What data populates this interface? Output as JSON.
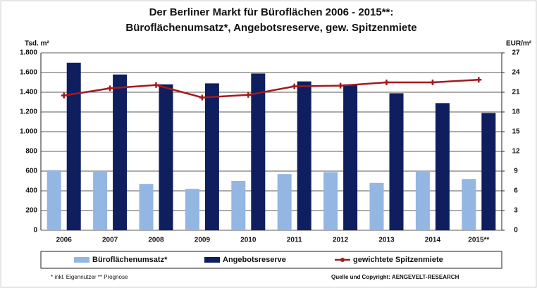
{
  "chart_data": {
    "type": "bar_line",
    "title": "Der Berliner Markt für Büroflächen 2006 - 2015**:",
    "subtitle": "Büroflächenumsatz*, Angebotsreserve, gew. Spitzenmiete",
    "y_label": "Tsd. m²",
    "y2_label": "EUR/m²",
    "categories": [
      "2006",
      "2007",
      "2008",
      "2009",
      "2010",
      "2011",
      "2012",
      "2013",
      "2014",
      "2015**"
    ],
    "series": [
      {
        "name": "Büroflächenumsatz*",
        "type": "bar",
        "color": "#93b6e2",
        "values": [
          610,
          600,
          470,
          420,
          500,
          570,
          590,
          480,
          600,
          520
        ]
      },
      {
        "name": "Angebotsreserve",
        "type": "bar",
        "color": "#0f1e5e",
        "values": [
          1700,
          1580,
          1480,
          1490,
          1590,
          1510,
          1480,
          1390,
          1290,
          1190
        ]
      },
      {
        "name": "gewichtete Spitzenmiete",
        "type": "line",
        "axis": "y2",
        "color": "#a3191f",
        "values": [
          20.5,
          21.6,
          22.1,
          20.2,
          20.6,
          21.9,
          22.0,
          22.5,
          22.5,
          22.9
        ]
      }
    ],
    "ylim": [
      0,
      1800
    ],
    "yticks": [
      0,
      200,
      400,
      600,
      800,
      {
        "value": 1000,
        "label": "1.000"
      },
      {
        "value": 1200,
        "label": "1.200"
      },
      {
        "value": 1400,
        "label": "1.400"
      },
      {
        "value": 1600,
        "label": "1.600"
      },
      {
        "value": 1800,
        "label": "1.800"
      }
    ],
    "y2lim": [
      0,
      27
    ],
    "y2ticks": [
      0,
      3,
      6,
      9,
      12,
      15,
      18,
      21,
      24,
      27
    ],
    "grid": true,
    "legend": "bottom",
    "footnote": "* inkl. Eigennutzer ** Prognose",
    "source": "Quelle und Copyright: AENGEVELT-RESEARCH"
  }
}
